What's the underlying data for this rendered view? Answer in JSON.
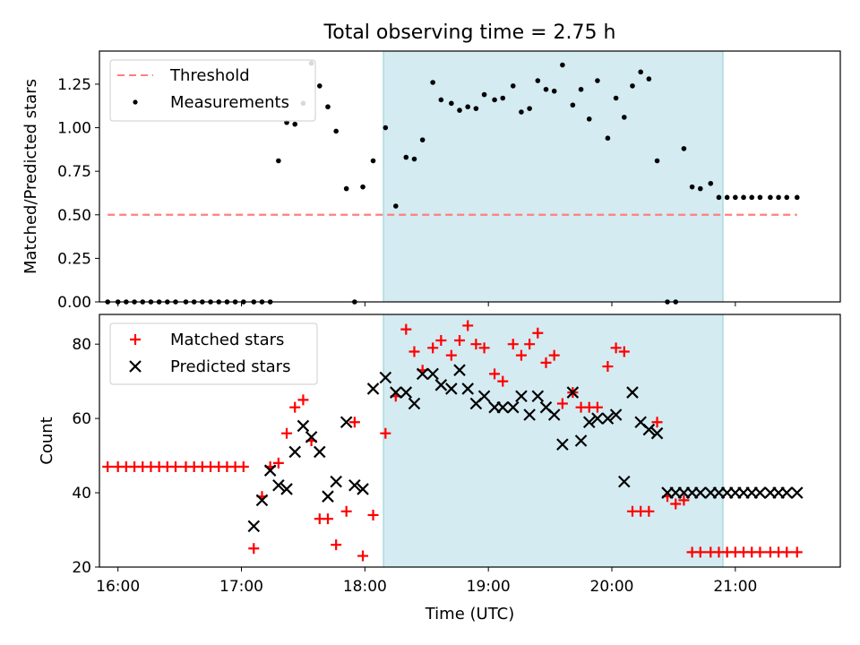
{
  "chart_data": [
    {
      "type": "scatter",
      "title": "Total observing time = 2.75 h",
      "xlabel": "",
      "ylabel": "Matched/Predicted stars",
      "ylim": [
        0,
        1.44
      ],
      "xlim": [
        "15:51",
        "21:51"
      ],
      "yticks": [
        "0.00",
        "0.25",
        "0.50",
        "0.75",
        "1.00",
        "1.25"
      ],
      "grid": false,
      "legend_position": "top-left",
      "observing_window": {
        "start": "18:09",
        "end": "20:54"
      },
      "threshold": {
        "name": "Threshold",
        "value": 0.5,
        "x_start": "15:55",
        "x_end": "21:30",
        "color": "#ff7f7f"
      },
      "series": [
        {
          "name": "Measurements",
          "color": "#000000",
          "x": [
            "15:55",
            "16:00",
            "16:04",
            "16:08",
            "16:12",
            "16:16",
            "16:20",
            "16:24",
            "16:28",
            "16:33",
            "16:37",
            "16:41",
            "16:45",
            "16:49",
            "16:53",
            "16:57",
            "17:01",
            "17:06",
            "17:10",
            "17:14",
            "17:18",
            "17:22",
            "17:26",
            "17:30",
            "17:34",
            "17:38",
            "17:42",
            "17:46",
            "17:51",
            "17:55",
            "17:59",
            "18:04",
            "18:10",
            "18:15",
            "18:20",
            "18:24",
            "18:28",
            "18:33",
            "18:37",
            "18:42",
            "18:46",
            "18:50",
            "18:54",
            "18:58",
            "19:03",
            "19:07",
            "19:12",
            "19:16",
            "19:20",
            "19:24",
            "19:28",
            "19:32",
            "19:36",
            "19:41",
            "19:45",
            "19:49",
            "19:53",
            "19:58",
            "20:02",
            "20:06",
            "20:10",
            "20:14",
            "20:18",
            "20:22",
            "20:27",
            "20:31",
            "20:35",
            "20:39",
            "20:43",
            "20:48",
            "20:52",
            "20:56",
            "21:00",
            "21:04",
            "21:08",
            "21:12",
            "21:17",
            "21:21",
            "21:25",
            "21:30"
          ],
          "y": [
            0,
            0,
            0,
            0,
            0,
            0,
            0,
            0,
            0,
            0,
            0,
            0,
            0,
            0,
            0,
            0,
            0,
            0,
            0,
            0,
            0.81,
            1.03,
            1.02,
            1.14,
            1.37,
            1.24,
            1.12,
            0.98,
            0.65,
            0,
            0.66,
            0.81,
            1.0,
            0.55,
            0.83,
            0.82,
            0.93,
            1.26,
            1.16,
            1.14,
            1.1,
            1.12,
            1.11,
            1.19,
            1.16,
            1.17,
            1.24,
            1.09,
            1.11,
            1.27,
            1.22,
            1.21,
            1.36,
            1.13,
            1.22,
            1.05,
            1.27,
            0.94,
            1.17,
            1.06,
            1.24,
            1.32,
            1.28,
            0.81,
            0,
            0,
            0.88,
            0.66,
            0.65,
            0.68,
            0.6,
            0.6,
            0.6,
            0.6,
            0.6,
            0.6,
            0.6,
            0.6,
            0.6,
            0.6
          ]
        }
      ]
    },
    {
      "type": "scatter",
      "title": "",
      "xlabel": "Time (UTC)",
      "ylabel": "Count",
      "ylim": [
        20,
        88
      ],
      "xlim": [
        "15:51",
        "21:51"
      ],
      "yticks": [
        "20",
        "40",
        "60",
        "80"
      ],
      "xticks": [
        "16:00",
        "17:00",
        "18:00",
        "19:00",
        "20:00",
        "21:00"
      ],
      "grid": false,
      "legend_position": "top-left",
      "observing_window": {
        "start": "18:09",
        "end": "20:54"
      },
      "series": [
        {
          "name": "Matched stars",
          "marker": "plus",
          "color": "#ff0000",
          "x": [
            "15:55",
            "16:00",
            "16:04",
            "16:08",
            "16:12",
            "16:16",
            "16:20",
            "16:24",
            "16:28",
            "16:33",
            "16:37",
            "16:41",
            "16:45",
            "16:49",
            "16:53",
            "16:57",
            "17:01",
            "17:06",
            "17:10",
            "17:14",
            "17:18",
            "17:22",
            "17:26",
            "17:30",
            "17:34",
            "17:38",
            "17:42",
            "17:46",
            "17:51",
            "17:55",
            "17:59",
            "18:04",
            "18:10",
            "18:15",
            "18:20",
            "18:24",
            "18:28",
            "18:33",
            "18:37",
            "18:42",
            "18:46",
            "18:50",
            "18:54",
            "18:58",
            "19:03",
            "19:07",
            "19:12",
            "19:16",
            "19:20",
            "19:24",
            "19:28",
            "19:32",
            "19:36",
            "19:41",
            "19:45",
            "19:49",
            "19:53",
            "19:58",
            "20:02",
            "20:06",
            "20:10",
            "20:14",
            "20:18",
            "20:22",
            "20:27",
            "20:31",
            "20:35",
            "20:39",
            "20:43",
            "20:48",
            "20:52",
            "20:56",
            "21:00",
            "21:04",
            "21:08",
            "21:12",
            "21:17",
            "21:21",
            "21:25",
            "21:30"
          ],
          "y": [
            47,
            47,
            47,
            47,
            47,
            47,
            47,
            47,
            47,
            47,
            47,
            47,
            47,
            47,
            47,
            47,
            47,
            25,
            39,
            47,
            48,
            56,
            63,
            65,
            54,
            33,
            33,
            26,
            35,
            59,
            23,
            34,
            56,
            66,
            84,
            78,
            73,
            79,
            81,
            77,
            81,
            85,
            80,
            79,
            72,
            70,
            80,
            77,
            80,
            83,
            75,
            77,
            64,
            67,
            63,
            63,
            63,
            74,
            79,
            78,
            35,
            35,
            35,
            59,
            39,
            37,
            38,
            24,
            24,
            24,
            24,
            24,
            24,
            24,
            24,
            24,
            24,
            24,
            24,
            24
          ]
        },
        {
          "name": "Predicted stars",
          "marker": "x",
          "color": "#000000",
          "x": [
            "17:06",
            "17:10",
            "17:14",
            "17:18",
            "17:22",
            "17:26",
            "17:30",
            "17:34",
            "17:38",
            "17:42",
            "17:46",
            "17:51",
            "17:55",
            "17:59",
            "18:04",
            "18:10",
            "18:15",
            "18:20",
            "18:24",
            "18:28",
            "18:33",
            "18:37",
            "18:42",
            "18:46",
            "18:50",
            "18:54",
            "18:58",
            "19:03",
            "19:07",
            "19:12",
            "19:16",
            "19:20",
            "19:24",
            "19:28",
            "19:32",
            "19:36",
            "19:41",
            "19:45",
            "19:49",
            "19:53",
            "19:58",
            "20:02",
            "20:06",
            "20:10",
            "20:14",
            "20:18",
            "20:22",
            "20:27",
            "20:31",
            "20:35",
            "20:39",
            "20:43",
            "20:48",
            "20:52",
            "20:56",
            "21:00",
            "21:04",
            "21:08",
            "21:12",
            "21:17",
            "21:21",
            "21:25",
            "21:30"
          ],
          "y": [
            31,
            38,
            46,
            42,
            41,
            51,
            58,
            55,
            51,
            39,
            43,
            59,
            42,
            41,
            68,
            71,
            67,
            67,
            64,
            72,
            72,
            69,
            68,
            73,
            68,
            64,
            66,
            63,
            63,
            63,
            66,
            61,
            66,
            63,
            61,
            53,
            67,
            54,
            59,
            60,
            60,
            61,
            43,
            67,
            59,
            57,
            56,
            40,
            40,
            40,
            40,
            40,
            40,
            40,
            40,
            40,
            40,
            40,
            40,
            40,
            40,
            40,
            40
          ]
        }
      ]
    }
  ]
}
